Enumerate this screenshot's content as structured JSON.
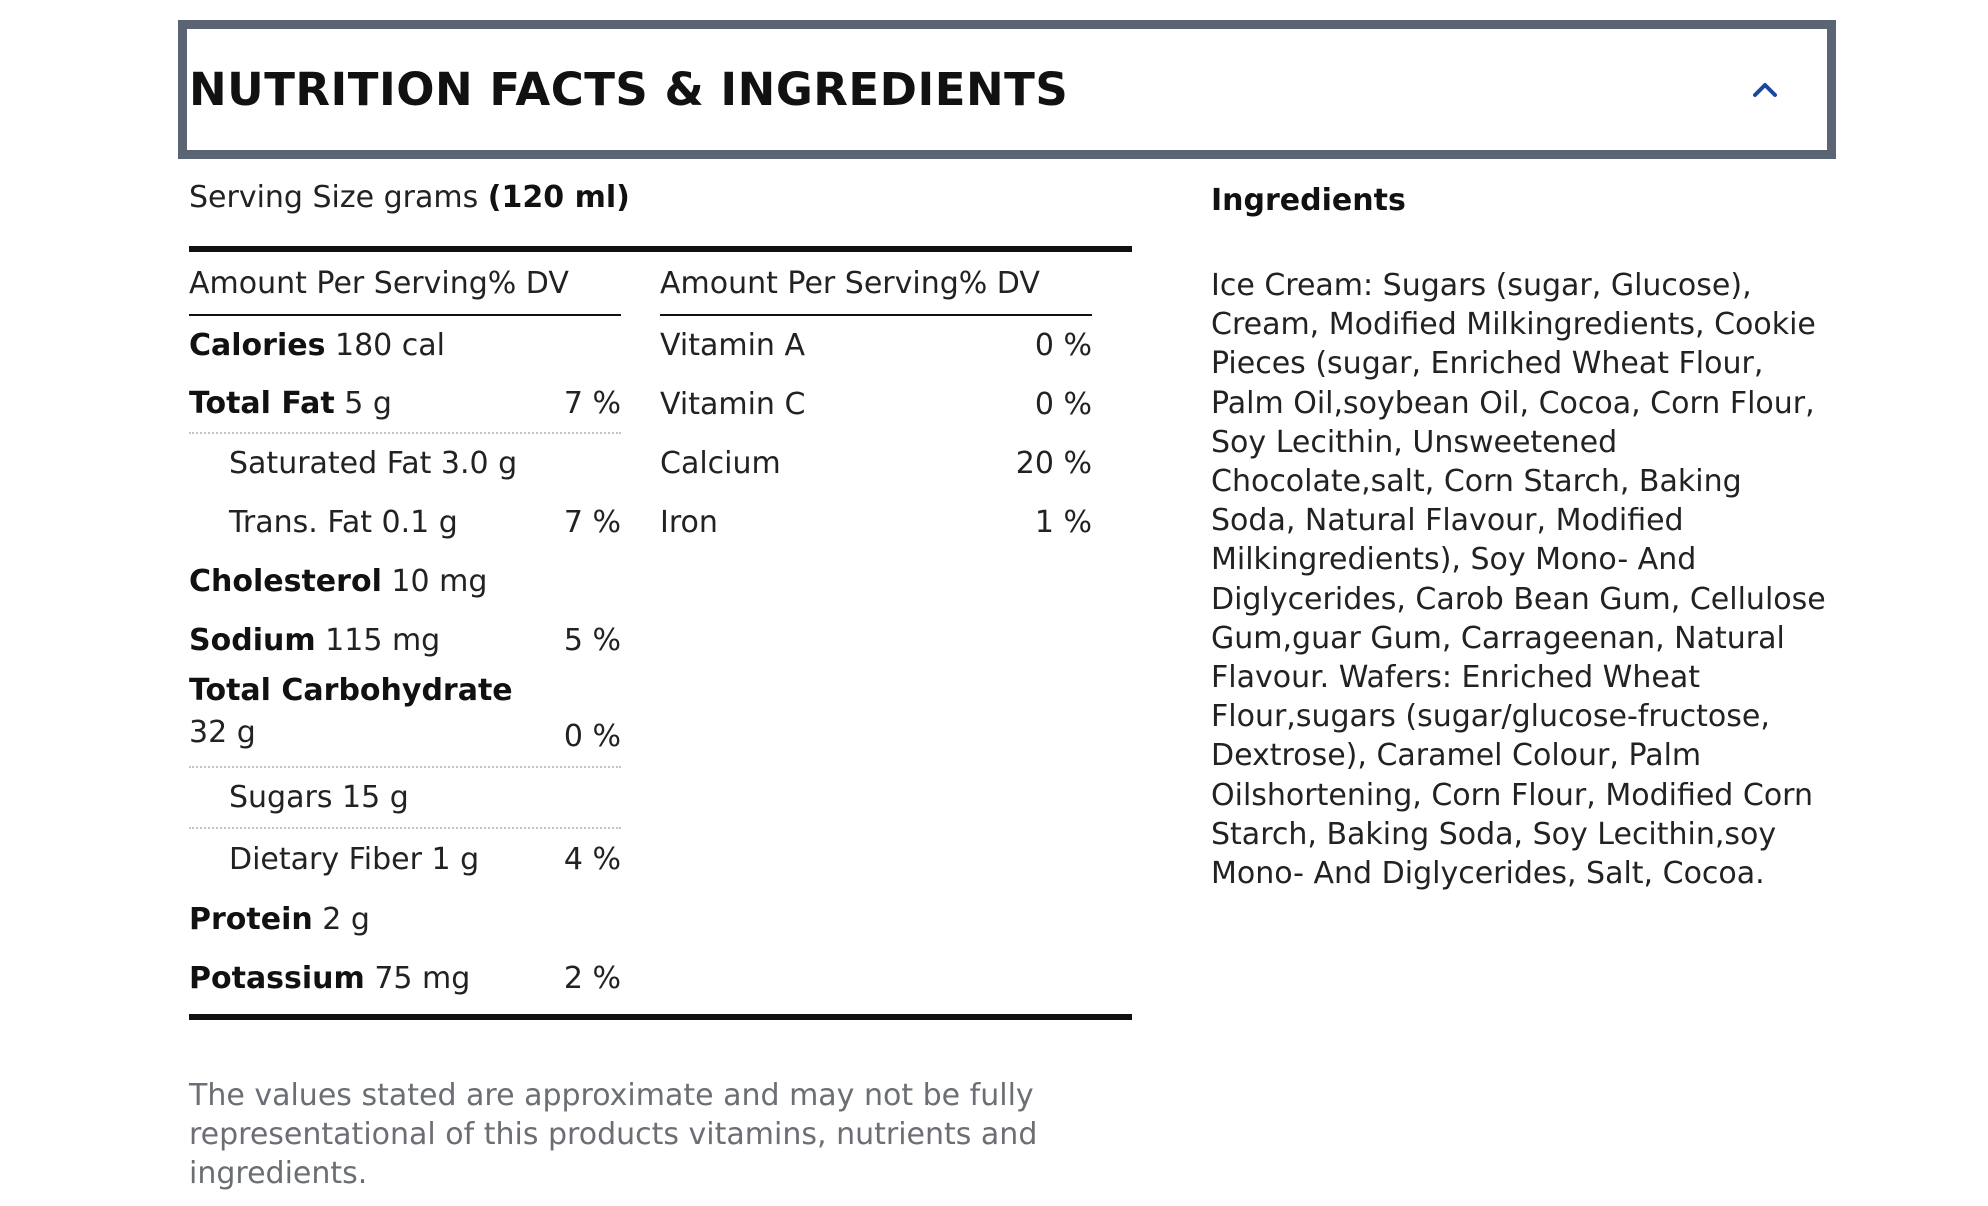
{
  "accordion": {
    "title": "NUTRITION FACTS & INGREDIENTS",
    "toggle_icon": "chevron-up-icon",
    "accent_color": "#1a47a0",
    "border_color": "#5b6472"
  },
  "serving": {
    "label": "Serving Size grams",
    "value": "(120 ml)"
  },
  "nutrition_left": {
    "header": "Amount Per Serving% DV",
    "rows": [
      {
        "name": "Calories",
        "amount": "180 cal",
        "dv": ""
      },
      {
        "name": "Total Fat",
        "amount": "5 g",
        "dv": "7 %"
      },
      {
        "name": "Saturated Fat 3.0 g",
        "amount": "",
        "dv": ""
      },
      {
        "name": "Trans. Fat 0.1 g",
        "amount": "",
        "dv": "7 %"
      },
      {
        "name": "Cholesterol",
        "amount": "10 mg",
        "dv": ""
      },
      {
        "name": "Sodium",
        "amount": "115 mg",
        "dv": "5 %"
      },
      {
        "name": "Total Carbohydrate",
        "amount": "32 g",
        "dv": "0 %"
      },
      {
        "name": "Sugars 15 g",
        "amount": "",
        "dv": ""
      },
      {
        "name": "Dietary Fiber 1 g",
        "amount": "",
        "dv": "4 %"
      },
      {
        "name": "Protein",
        "amount": "2 g",
        "dv": ""
      },
      {
        "name": "Potassium",
        "amount": "75 mg",
        "dv": "2 %"
      }
    ]
  },
  "nutrition_right": {
    "header": "Amount Per Serving% DV",
    "rows": [
      {
        "name": "Vitamin A",
        "dv": "0 %"
      },
      {
        "name": "Vitamin C",
        "dv": "0 %"
      },
      {
        "name": "Calcium",
        "dv": "20 %"
      },
      {
        "name": "Iron",
        "dv": "1 %"
      }
    ]
  },
  "note": "The values stated are approximate and may not be fully representational of this products vitamins, nutrients and ingredients.",
  "ingredients": {
    "title": "Ingredients",
    "text": "Ice Cream: Sugars (sugar, Glucose), Cream, Modified Milkingredients, Cookie Pieces (sugar, Enriched Wheat Flour, Palm Oil,soybean Oil, Cocoa, Corn Flour, Soy Lecithin, Unsweetened Chocolate,salt, Corn Starch, Baking Soda, Natural Flavour, Modified Milkingredients), Soy Mono- And Diglycerides, Carob Bean Gum, Cellulose Gum,guar Gum, Carrageenan, Natural Flavour. Wafers: Enriched Wheat Flour,sugars (sugar/glucose-fructose, Dextrose), Caramel Colour, Palm Oilshortening, Corn Flour, Modified Corn Starch, Baking Soda, Soy Lecithin,soy Mono- And Diglycerides, Salt, Cocoa."
  }
}
